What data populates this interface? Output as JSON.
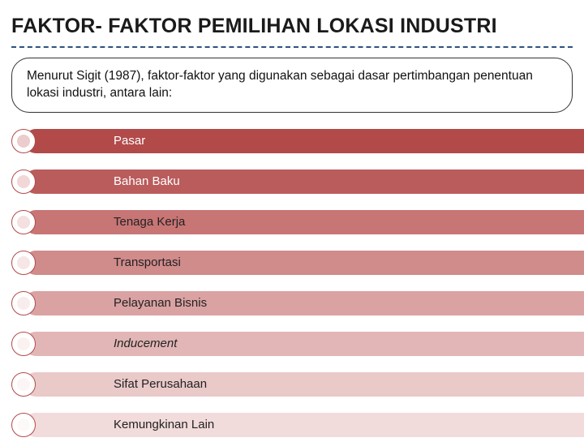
{
  "title": "FAKTOR- FAKTOR PEMILIHAN LOKASI INDUSTRI",
  "intro": "Menurut Sigit (1987), faktor-faktor yang digunakan sebagai dasar pertimbangan penentuan lokasi industri, antara lain:",
  "colors": {
    "divider": "#305080",
    "bullet_border": "#b24a4a"
  },
  "items": [
    {
      "label": "Pasar",
      "bar_color": "#b24a4a",
      "bullet_color": "#eccccc",
      "text_light": false,
      "italic": false
    },
    {
      "label": "Bahan Baku",
      "bar_color": "#ba5c5c",
      "bullet_color": "#f1d7d7",
      "text_light": false,
      "italic": false
    },
    {
      "label": "Tenaga Kerja",
      "bar_color": "#c87575",
      "bullet_color": "#f4e0e0",
      "text_light": true,
      "italic": false
    },
    {
      "label": "Transportasi",
      "bar_color": "#d08b8b",
      "bullet_color": "#f6e6e6",
      "text_light": true,
      "italic": false
    },
    {
      "label": "Pelayanan Bisnis",
      "bar_color": "#daa2a2",
      "bullet_color": "#f8ecec",
      "text_light": true,
      "italic": false
    },
    {
      "label": "Inducement",
      "bar_color": "#e2b6b6",
      "bullet_color": "#faf1f1",
      "text_light": true,
      "italic": true
    },
    {
      "label": "Sifat Perusahaan",
      "bar_color": "#eac9c9",
      "bullet_color": "#fcf5f5",
      "text_light": true,
      "italic": false
    },
    {
      "label": "Kemungkinan Lain",
      "bar_color": "#f1dbdb",
      "bullet_color": "#fdf9f9",
      "text_light": true,
      "italic": false
    }
  ]
}
